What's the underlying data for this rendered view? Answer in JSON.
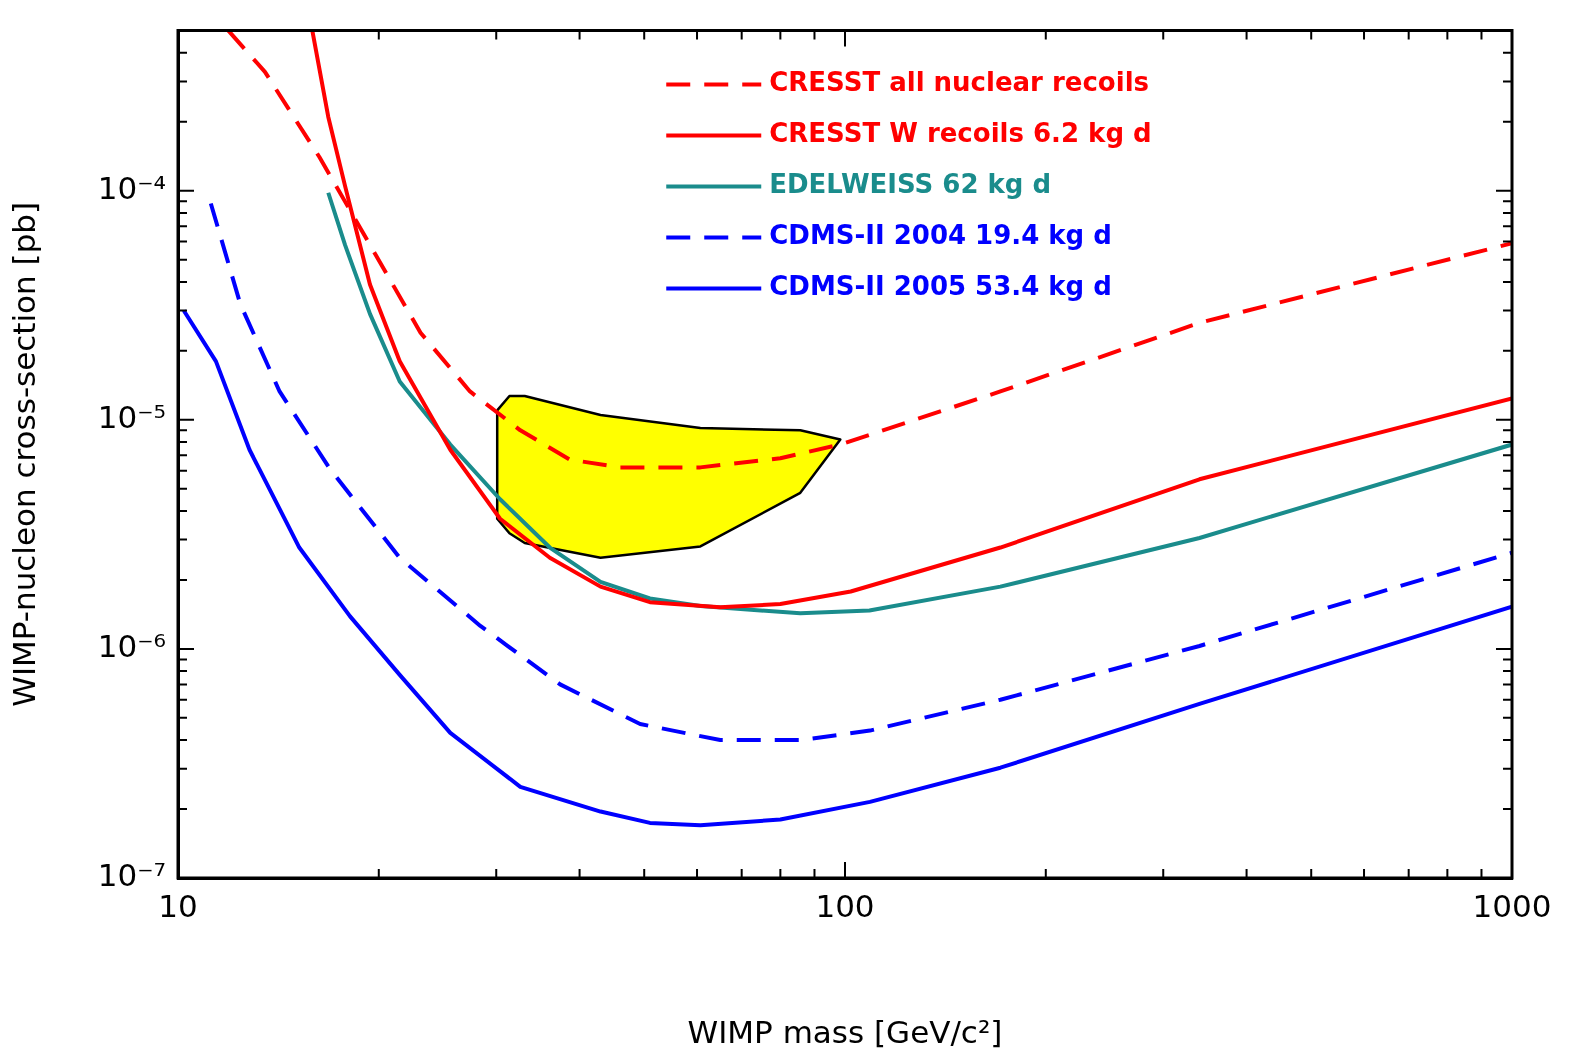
{
  "chart_data": {
    "type": "line",
    "xlabel": "WIMP mass [GeV/c²]",
    "ylabel": "WIMP-nucleon cross-section [pb]",
    "log": "xy",
    "legend": "top right",
    "marker": "none",
    "xlim": [
      10,
      1000
    ],
    "ylim": [
      1e-07,
      0.0005
    ],
    "xticks": [
      10,
      {
        "value": 20,
        "label": null
      },
      {
        "value": 30,
        "label": null
      },
      {
        "value": 40,
        "label": null
      },
      {
        "value": 50,
        "label": null
      },
      {
        "value": 60,
        "label": null
      },
      {
        "value": 70,
        "label": null
      },
      {
        "value": 80,
        "label": null
      },
      {
        "value": 90,
        "label": null
      },
      100,
      {
        "value": 200,
        "label": null
      },
      {
        "value": 300,
        "label": null
      },
      {
        "value": 400,
        "label": null
      },
      {
        "value": 500,
        "label": null
      },
      {
        "value": 600,
        "label": null
      },
      {
        "value": 700,
        "label": null
      },
      {
        "value": 800,
        "label": null
      },
      {
        "value": 900,
        "label": null
      },
      1000
    ],
    "yticks": [
      {
        "value": 1e-07,
        "label": "10⁻⁷"
      },
      {
        "value": 2e-07,
        "label": null
      },
      {
        "value": 3e-07,
        "label": null
      },
      {
        "value": 4e-07,
        "label": null
      },
      {
        "value": 5e-07,
        "label": null
      },
      {
        "value": 6e-07,
        "label": null
      },
      {
        "value": 7e-07,
        "label": null
      },
      {
        "value": 8e-07,
        "label": null
      },
      {
        "value": 9e-07,
        "label": null
      },
      {
        "value": 1e-06,
        "label": "10⁻⁶"
      },
      {
        "value": 2e-06,
        "label": null
      },
      {
        "value": 3e-06,
        "label": null
      },
      {
        "value": 4e-06,
        "label": null
      },
      {
        "value": 5e-06,
        "label": null
      },
      {
        "value": 6e-06,
        "label": null
      },
      {
        "value": 7e-06,
        "label": null
      },
      {
        "value": 8e-06,
        "label": null
      },
      {
        "value": 9e-06,
        "label": null
      },
      {
        "value": 1e-05,
        "label": "10⁻⁵"
      },
      {
        "value": 2e-05,
        "label": null
      },
      {
        "value": 3e-05,
        "label": null
      },
      {
        "value": 4e-05,
        "label": null
      },
      {
        "value": 5e-05,
        "label": null
      },
      {
        "value": 6e-05,
        "label": null
      },
      {
        "value": 7e-05,
        "label": null
      },
      {
        "value": 8e-05,
        "label": null
      },
      {
        "value": 9e-05,
        "label": null
      },
      {
        "value": 0.0001,
        "label": "10⁻⁴"
      },
      {
        "value": 0.0002,
        "label": null
      },
      {
        "value": 0.0003,
        "label": null
      },
      {
        "value": 0.0004,
        "label": null
      },
      {
        "value": 0.0005,
        "label": null
      }
    ],
    "series": [
      {
        "type": "area",
        "color": "#ffff00",
        "x": [
          30.1,
          31.4,
          33.1,
          43,
          60.7,
          85.7,
          98.4,
          85.7,
          60.7,
          43,
          33.1,
          31.4,
          30.1,
          30.1
        ],
        "values": [
          1.1e-05,
          1.27e-05,
          1.27e-05,
          1.05e-05,
          9.2e-06,
          9e-06,
          8.2e-06,
          4.8e-06,
          2.8e-06,
          2.5e-06,
          2.9e-06,
          3.2e-06,
          3.7e-06,
          1.1e-05
        ]
      },
      {
        "name": "CRESST all nuclear recoils",
        "color": "#ff0000",
        "line_style": "dashed",
        "x": [
          11.9,
          13.5,
          16.3,
          19.4,
          23.1,
          27.4,
          32.6,
          38.7,
          46,
          60.7,
          80,
          98.4,
          171,
          340,
          1000
        ],
        "values": [
          0.0005,
          0.00033,
          0.00014,
          5.8e-05,
          2.4e-05,
          1.33e-05,
          9e-06,
          6.7e-06,
          6.2e-06,
          6.2e-06,
          6.8e-06,
          7.8e-06,
          1.33e-05,
          2.65e-05,
          5.9e-05
        ]
      },
      {
        "name": "CRESST W recoils 6.2 kg d",
        "color": "#ff0000",
        "line_style": "solid",
        "x": [
          15.9,
          16.8,
          17.8,
          19.4,
          21.5,
          25.6,
          30.4,
          36.1,
          43,
          51,
          65,
          80,
          102,
          171,
          340,
          1000
        ],
        "values": [
          0.0005,
          0.00021,
          0.000105,
          3.9e-05,
          1.8e-05,
          7.4e-06,
          3.7e-06,
          2.5e-06,
          1.87e-06,
          1.6e-06,
          1.52e-06,
          1.57e-06,
          1.78e-06,
          2.77e-06,
          5.5e-06,
          1.24e-05
        ]
      },
      {
        "name": "EDELWEISS 62 kg d",
        "color": "#1a8c8c",
        "line_style": "solid",
        "x": [
          16.8,
          17.8,
          19.4,
          21.5,
          25.6,
          30.4,
          36.1,
          43,
          51,
          60.7,
          85.7,
          108.8,
          171,
          340,
          1000
        ],
        "values": [
          9.8e-05,
          5.8e-05,
          2.9e-05,
          1.47e-05,
          7.8e-06,
          4.5e-06,
          2.77e-06,
          1.96e-06,
          1.66e-06,
          1.54e-06,
          1.43e-06,
          1.47e-06,
          1.87e-06,
          3.05e-06,
          7.8e-06
        ]
      },
      {
        "name": "CDMS-II 2004 19.4 kg d",
        "color": "#0000ff",
        "line_style": "dashed",
        "x": [
          11.2,
          12.4,
          14.2,
          16.9,
          21.5,
          28.4,
          37.4,
          49.3,
          65,
          85.7,
          109,
          171,
          340,
          1000
        ],
        "values": [
          8.8e-05,
          3.2e-05,
          1.33e-05,
          6.1e-06,
          2.5e-06,
          1.26e-06,
          7e-07,
          4.7e-07,
          4e-07,
          4e-07,
          4.4e-07,
          6e-07,
          1.03e-06,
          2.63e-06
        ]
      },
      {
        "name": "CDMS-II 2005 53.4 kg d",
        "color": "#0000ff",
        "line_style": "solid",
        "x": [
          10.2,
          11.4,
          12.8,
          15.2,
          18.1,
          21.5,
          25.6,
          32.6,
          43,
          51,
          60.7,
          80,
          109,
          171,
          340,
          1000
        ],
        "values": [
          3e-05,
          1.8e-05,
          7.4e-06,
          2.77e-06,
          1.39e-06,
          7.7e-07,
          4.3e-07,
          2.5e-07,
          1.95e-07,
          1.74e-07,
          1.7e-07,
          1.8e-07,
          2.15e-07,
          3.03e-07,
          5.75e-07,
          1.53e-06
        ]
      }
    ]
  }
}
